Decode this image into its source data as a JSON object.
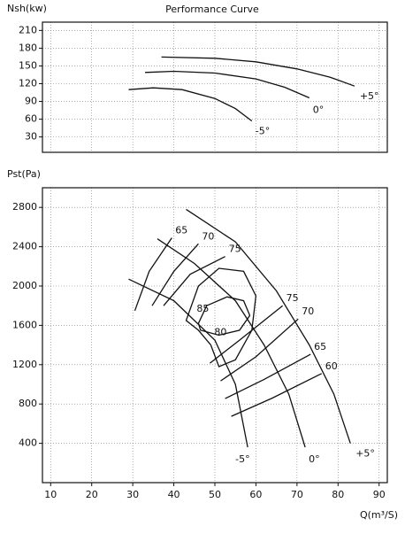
{
  "chart_data": [
    {
      "type": "line",
      "title": "Performance Curve",
      "y_label": "Nsh(kw)",
      "xlim": [
        8,
        92
      ],
      "ylim": [
        4,
        224
      ],
      "yticks": [
        30,
        60,
        90,
        120,
        150,
        180,
        210
      ],
      "grid": true,
      "series": [
        {
          "name": "+5°",
          "color": "#111111",
          "x": [
            37,
            50,
            60,
            70,
            78,
            84
          ],
          "values": [
            165,
            163,
            157,
            145,
            131,
            116
          ]
        },
        {
          "name": "0°",
          "color": "#111111",
          "x": [
            33,
            40,
            50,
            60,
            67,
            73
          ],
          "values": [
            139,
            141,
            138,
            128,
            114,
            96
          ]
        },
        {
          "name": "-5°",
          "color": "#111111",
          "x": [
            29,
            35,
            42,
            50,
            55,
            59
          ],
          "values": [
            110,
            113,
            110,
            95,
            78,
            57
          ]
        }
      ]
    },
    {
      "type": "line",
      "y_label": "Pst(Pa)",
      "x_label": "Q(m³/S)",
      "xlim": [
        8,
        92
      ],
      "ylim": [
        0,
        3000
      ],
      "xticks": [
        10,
        20,
        30,
        40,
        50,
        60,
        70,
        80,
        90
      ],
      "yticks": [
        400,
        800,
        1200,
        1600,
        2000,
        2400,
        2800
      ],
      "grid": true,
      "series": [
        {
          "name": "-5°",
          "color": "#111111",
          "x": [
            29,
            40,
            50,
            55,
            58
          ],
          "values": [
            2070,
            1850,
            1450,
            1000,
            360
          ]
        },
        {
          "name": "0°",
          "color": "#111111",
          "x": [
            36,
            45,
            55,
            62,
            68,
            72
          ],
          "values": [
            2480,
            2230,
            1850,
            1400,
            900,
            360
          ]
        },
        {
          "name": "+5°",
          "color": "#111111",
          "x": [
            43,
            55,
            65,
            73,
            79,
            83
          ],
          "values": [
            2780,
            2450,
            1950,
            1400,
            900,
            400
          ]
        },
        {
          "name": "65",
          "color": "#111111",
          "x": [
            30.5,
            34,
            39.5
          ],
          "values": [
            1750,
            2150,
            2490
          ]
        },
        {
          "name": "70",
          "color": "#111111",
          "x": [
            34.7,
            40,
            46
          ],
          "values": [
            1800,
            2150,
            2430
          ]
        },
        {
          "name": "75",
          "color": "#111111",
          "x": [
            37.5,
            44,
            52.5
          ],
          "values": [
            1800,
            2120,
            2300
          ]
        },
        {
          "name": "80",
          "color": "#111111",
          "x": [
            49,
            46,
            43,
            46,
            51,
            57,
            60,
            59,
            55,
            51,
            49
          ],
          "values": [
            1400,
            1550,
            1650,
            2000,
            2180,
            2150,
            1900,
            1550,
            1250,
            1180,
            1400
          ]
        },
        {
          "name": "85",
          "color": "#111111",
          "x": [
            46,
            48,
            53,
            57,
            58.5,
            56,
            51,
            46.5,
            46
          ],
          "values": [
            1620,
            1800,
            1890,
            1850,
            1700,
            1550,
            1500,
            1550,
            1620
          ]
        },
        {
          "name": "75",
          "color": "#111111",
          "x": [
            48.8,
            56,
            66.5
          ],
          "values": [
            1215,
            1450,
            1800
          ]
        },
        {
          "name": "70",
          "color": "#111111",
          "x": [
            51.4,
            60,
            70.3
          ],
          "values": [
            1035,
            1280,
            1665
          ]
        },
        {
          "name": "65",
          "color": "#111111",
          "x": [
            52.5,
            62,
            73.3
          ],
          "values": [
            855,
            1050,
            1305
          ]
        },
        {
          "name": "60",
          "color": "#111111",
          "x": [
            54,
            64,
            76
          ],
          "values": [
            675,
            860,
            1110
          ]
        }
      ]
    }
  ]
}
